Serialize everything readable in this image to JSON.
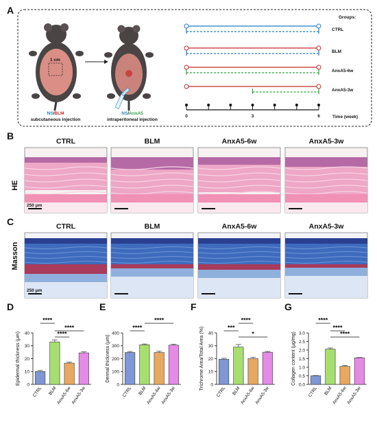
{
  "panel_labels": [
    "A",
    "B",
    "C",
    "D",
    "E",
    "F",
    "G"
  ],
  "schematic": {
    "scale_label": "1 cm",
    "injection1": {
      "ns": "NS",
      "slash": "/",
      "drug": "BLM",
      "route": "subcutaneous injection"
    },
    "injection2": {
      "ns": "NS",
      "slash": "/",
      "drug": "AnxA5",
      "route": "intraperitoneal injection"
    },
    "groups_title": "Groups:",
    "groups": [
      "CTRL",
      "BLM",
      "AnxA5-6w",
      "AnxA5-3w"
    ],
    "timeline_ticks": [
      "0",
      "3",
      "6"
    ],
    "time_label": "Time (week)",
    "colors": {
      "ns": "#1f7fc2",
      "blm": "#c62828",
      "anxa5": "#2e9e3a"
    }
  },
  "histology": {
    "columns": [
      "CTRL",
      "BLM",
      "AnxA5-6w",
      "AnxA5-3w"
    ],
    "rows": [
      "HE",
      "Masson"
    ],
    "scale_bar": "250 μm"
  },
  "chart_data": [
    {
      "type": "bar",
      "panel": "D",
      "categories": [
        "CTRL",
        "BLM",
        "AnxA5-6w",
        "AnxA5-3w"
      ],
      "values": [
        10,
        33,
        16.5,
        24.5
      ],
      "errors": [
        0.8,
        1.6,
        0.8,
        0.8
      ],
      "ylabel": "Epidermal thickness (μm)",
      "ylim": [
        0,
        40
      ],
      "yticks": [
        0,
        10,
        20,
        30,
        40
      ],
      "significance": [
        {
          "from": 0,
          "to": 1,
          "label": "****"
        },
        {
          "from": 1,
          "to": 3,
          "label": "****"
        },
        {
          "from": 1,
          "to": 2,
          "label": "****"
        }
      ]
    },
    {
      "type": "bar",
      "panel": "E",
      "categories": [
        "CTRL",
        "BLM",
        "AnxA5-6w",
        "AnxA5-3w"
      ],
      "values": [
        248,
        308,
        248,
        305
      ],
      "errors": [
        8,
        6,
        10,
        6
      ],
      "ylabel": "Dermal thickness (μm)",
      "ylim": [
        0,
        400
      ],
      "yticks": [
        0,
        100,
        200,
        300,
        400
      ],
      "significance": [
        {
          "from": 1,
          "to": 3,
          "label": "****"
        },
        {
          "from": 0,
          "to": 1,
          "label": "****"
        }
      ]
    },
    {
      "type": "bar",
      "panel": "F",
      "categories": [
        "CTRL",
        "BLM",
        "AnxA5-6w",
        "AnxA5-3w"
      ],
      "values": [
        19.5,
        29,
        20,
        25
      ],
      "errors": [
        0.8,
        2,
        1,
        0.6
      ],
      "ylabel": "Trichrome Area/Total Area (%)",
      "ylim": [
        0,
        40
      ],
      "yticks": [
        0,
        10,
        20,
        30,
        40
      ],
      "significance": [
        {
          "from": 1,
          "to": 2,
          "label": "****"
        },
        {
          "from": 0,
          "to": 1,
          "label": "***"
        },
        {
          "from": 1,
          "to": 3,
          "label": "*"
        }
      ]
    },
    {
      "type": "bar",
      "panel": "G",
      "categories": [
        "CTRL",
        "BLM",
        "AnxA5-6w",
        "AnxA5-3w"
      ],
      "values": [
        0.5,
        2.05,
        1.05,
        1.55
      ],
      "errors": [
        0.02,
        0.07,
        0.05,
        0.02
      ],
      "ylabel": "Collagen content (μg/mg)",
      "ylim": [
        0,
        3.0
      ],
      "yticks": [
        0.0,
        0.5,
        1.0,
        1.5,
        2.0,
        2.5,
        3.0
      ],
      "significance": [
        {
          "from": 0,
          "to": 1,
          "label": "****"
        },
        {
          "from": 1,
          "to": 2,
          "label": "****"
        },
        {
          "from": 1,
          "to": 3,
          "label": "****"
        }
      ]
    }
  ],
  "bar_colors": [
    "#7f97d4",
    "#a6df6e",
    "#e6a95f",
    "#e48be6"
  ]
}
